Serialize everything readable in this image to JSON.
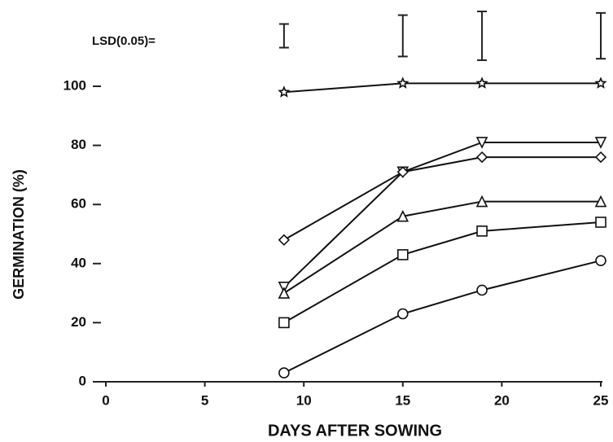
{
  "chart_data": {
    "type": "line",
    "x_label": "DAYS AFTER SOWING",
    "y_label": "GERMINATION (%)",
    "xlim": [
      0,
      25
    ],
    "xticks": [
      0,
      5,
      10,
      15,
      20,
      25
    ],
    "ylim": [
      0,
      100
    ],
    "yticks": [
      0,
      20,
      40,
      60,
      80,
      100
    ],
    "x": [
      9,
      15,
      19,
      25
    ],
    "series": [
      {
        "marker": "star",
        "color": "#111111",
        "values": [
          98,
          101,
          101,
          101
        ]
      },
      {
        "marker": "triangle-down",
        "color": "#111111",
        "values": [
          32,
          71,
          81,
          81
        ]
      },
      {
        "marker": "diamond",
        "color": "#111111",
        "values": [
          48,
          71,
          76,
          76
        ]
      },
      {
        "marker": "triangle-up",
        "color": "#111111",
        "values": [
          30,
          56,
          61,
          61
        ]
      },
      {
        "marker": "square",
        "color": "#111111",
        "values": [
          20,
          43,
          51,
          54
        ]
      },
      {
        "marker": "circle",
        "color": "#111111",
        "values": [
          3,
          23,
          31,
          41
        ]
      }
    ],
    "lsd": {
      "label": "LSD(0.05)=",
      "x": [
        9,
        15,
        19,
        25
      ],
      "values": [
        8,
        14,
        16.5,
        15.5
      ]
    }
  }
}
